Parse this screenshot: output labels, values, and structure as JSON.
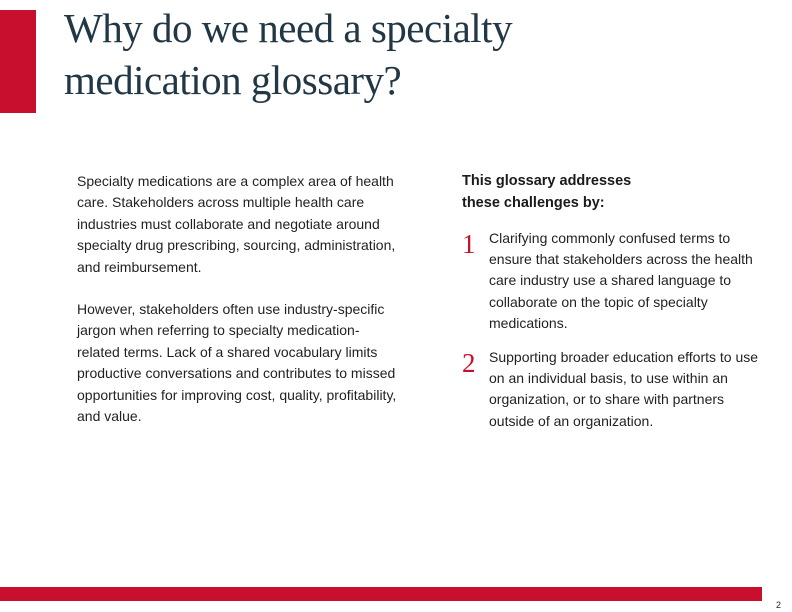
{
  "header": {
    "title": "Why do we need a specialty medication glossary?"
  },
  "intro": {
    "paragraph1": "Specialty medications are a complex area of health care. Stakeholders across multiple health care industries must collaborate and negotiate around specialty drug prescribing, sourcing, administration, and reimbursement.",
    "paragraph2": "However, stakeholders often use industry-specific jargon when referring to specialty medication-related terms. Lack of a shared vocabulary limits productive conversations and contributes to missed opportunities for improving cost, quality, profitability, and value."
  },
  "challenges": {
    "heading": "This glossary addresses these challenges by:",
    "items": [
      {
        "number": "1",
        "text": "Clarifying commonly confused terms to ensure that stakeholders across the health care industry use a shared language to collaborate on the topic of specialty medications."
      },
      {
        "number": "2",
        "text": "Supporting broader education efforts to use on an individual basis, to use within an organization, or to share with partners outside of an organization."
      }
    ]
  },
  "footer": {
    "page_number": "2"
  },
  "colors": {
    "accent_red": "#c8102e",
    "title_navy": "#223746"
  }
}
